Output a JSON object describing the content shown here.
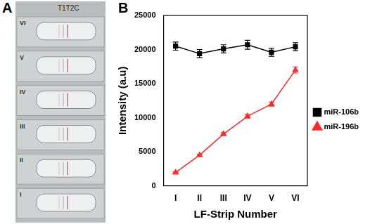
{
  "panel_labels": [
    "A",
    "B"
  ],
  "strip_image": {
    "header": "T1T2C",
    "strips": [
      "VI",
      "V",
      "IV",
      "III",
      "II",
      "I"
    ]
  },
  "chart_data": {
    "type": "line",
    "x_label": "LF-Strip Number",
    "y_label": "Intensity (a.u)",
    "categories": [
      "I",
      "II",
      "III",
      "IV",
      "V",
      "VI"
    ],
    "series": [
      {
        "name": "miR-106b",
        "color": "#000000",
        "marker": "square",
        "values": [
          20500,
          19400,
          20100,
          20700,
          19600,
          20400
        ],
        "errors": [
          600,
          600,
          600,
          650,
          600,
          600
        ]
      },
      {
        "name": "miR-196b",
        "color": "#ff2a2a",
        "marker": "triangle",
        "values": [
          1950,
          4500,
          7600,
          10200,
          12000,
          17000
        ],
        "errors": [
          100,
          150,
          200,
          250,
          300,
          450
        ]
      }
    ],
    "ylim": [
      0,
      25000
    ],
    "yticks": [
      0,
      5000,
      10000,
      15000,
      20000,
      25000
    ],
    "grid": false,
    "legend": "right"
  }
}
